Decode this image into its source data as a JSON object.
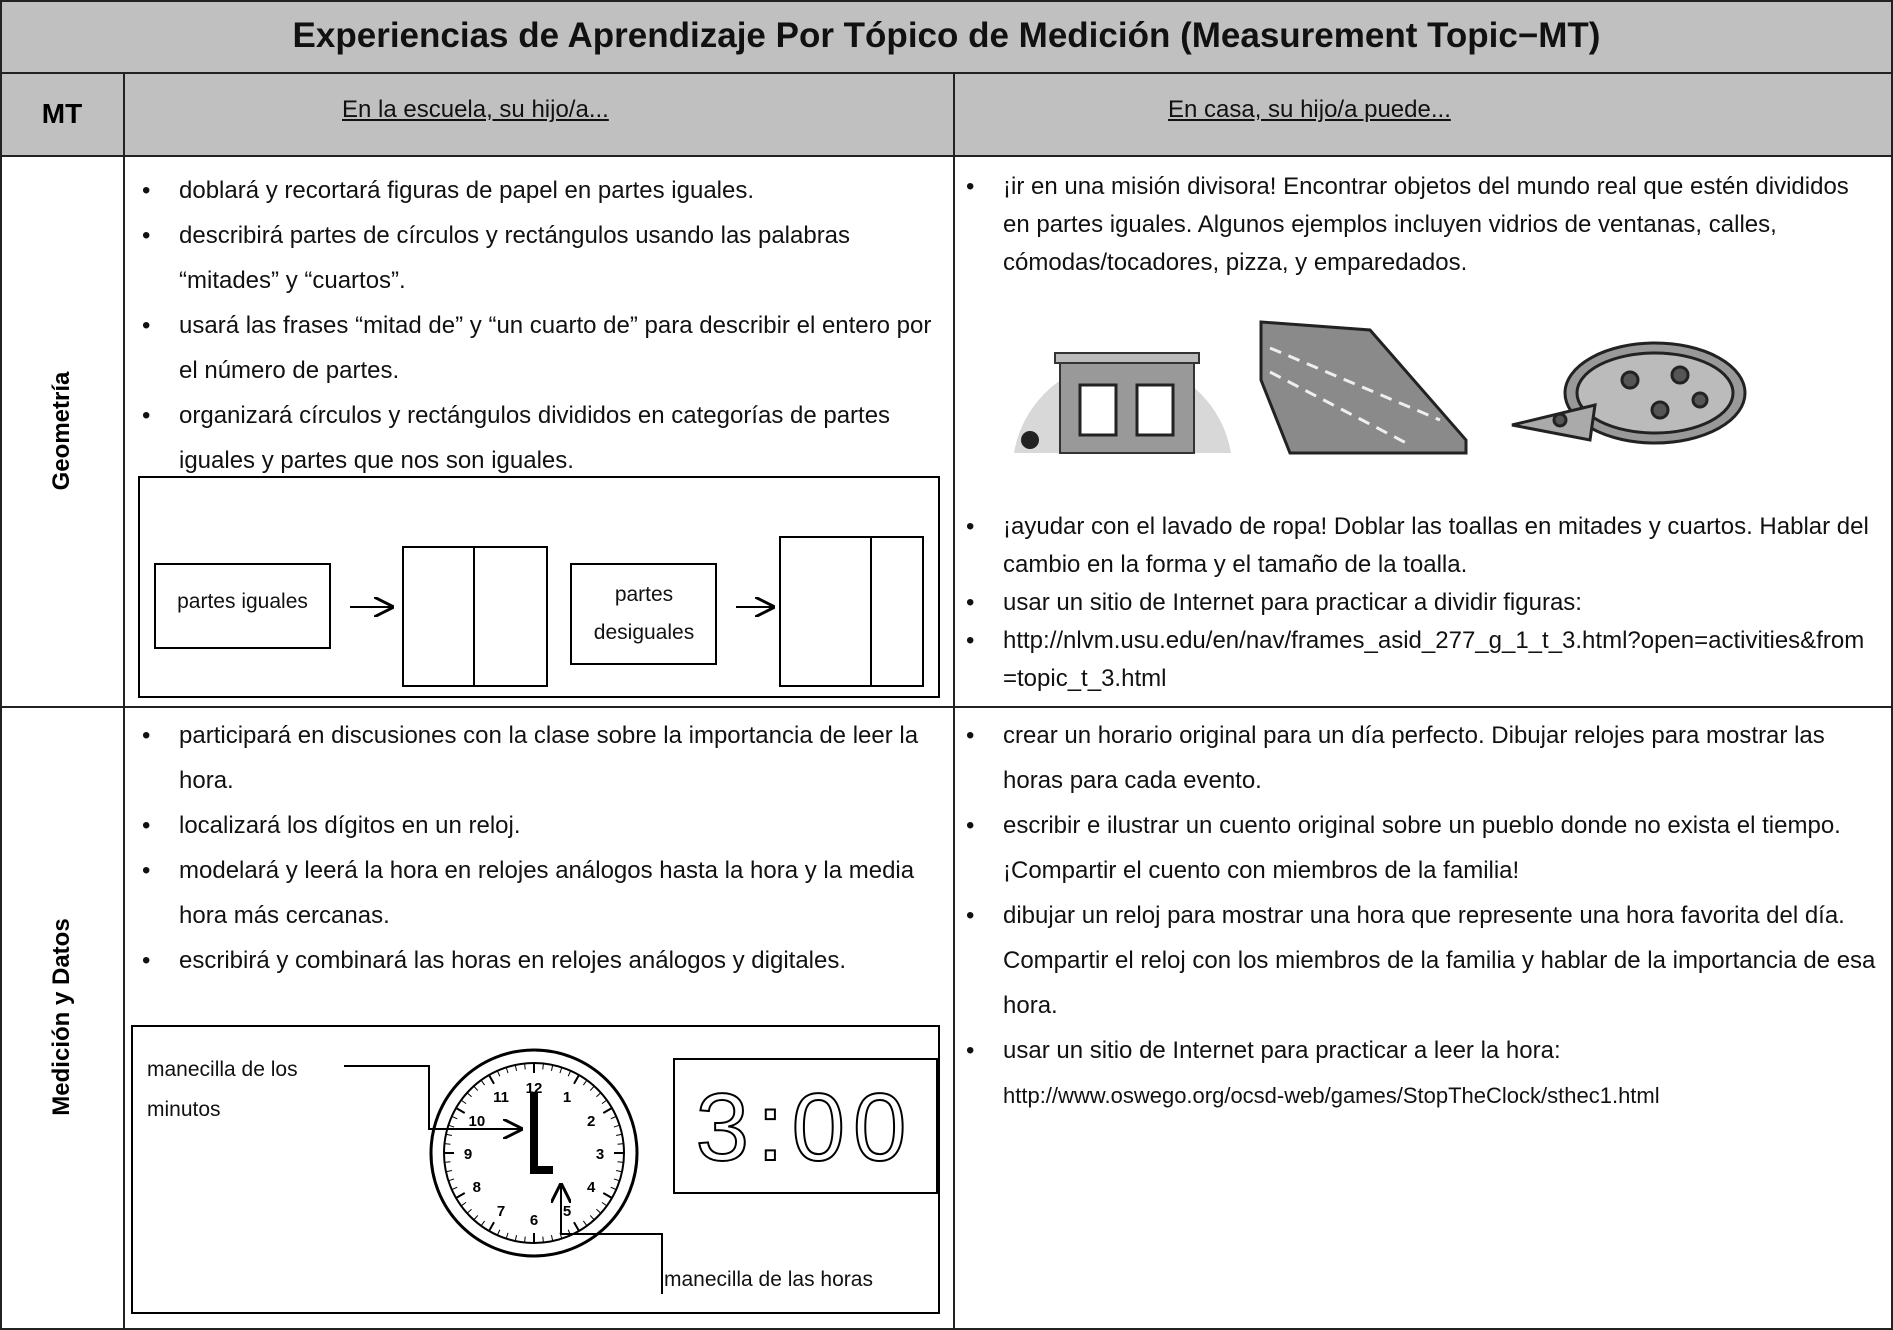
{
  "header": {
    "title": "Experiencias de Aprendizaje Por Tópico de Medición (Measurement Topic−MT)"
  },
  "table": {
    "columns": {
      "topic": "MT",
      "school": "En la escuela, su hijo/a...",
      "home": "En casa, su hijo/a puede..."
    },
    "rows": [
      {
        "topic": "Geometría",
        "school": [
          "doblará y recortará figuras de papel en partes iguales.",
          "describirá partes de círculos y rectángulos usando las palabras “mitades” y “cuartos”.",
          "usará las frases “mitad de” y “un cuarto de” para describir el entero por el número de partes.",
          "organizará círculos y rectángulos divididos en categorías de partes iguales y partes que nos son iguales."
        ],
        "home": [
          "¡ir en una misión divisora! Encontrar objetos del mundo real que estén divididos en partes iguales. Algunos ejemplos incluyen vidrios de ventanas, calles, cómodas/tocadores, pizza, y emparedados.",
          "¡ayudar con el lavado de ropa! Doblar las toallas en mitades y cuartos. Hablar del cambio en la forma y el tamaño de la toalla.",
          "usar un sitio de Internet para practicar a dividir figuras:",
          "http://nlvm.usu.edu/en/nav/frames_asid_277_g_1_t_3.html?open=activities&from=topic_t_3.html"
        ],
        "diagram": {
          "labels": [
            "partes iguales",
            "partes desiguales"
          ]
        }
      },
      {
        "topic": "Medición y Datos",
        "school": [
          "participará en discusiones con la clase sobre la importancia de leer la hora.",
          "localizará los dígitos en un reloj.",
          "modelará y leerá la hora en relojes análogos hasta la hora y la media hora más cercanas.",
          "escribirá y combinará las horas en relojes análogos y digitales."
        ],
        "home": [
          "crear un horario original para un día perfecto. Dibujar relojes para mostrar las horas para cada evento.",
          "escribir e ilustrar un cuento original sobre un pueblo donde no exista el tiempo.  ¡Compartir el cuento con miembros de la familia!",
          "dibujar un reloj para mostrar una hora que represente una hora favorita del día. Compartir el reloj con los miembros de la familia y hablar de la importancia de esa hora.",
          "usar un sitio de Internet para practicar a leer la hora:"
        ],
        "home_url": "http://www.oswego.org/ocsd-web/games/StopTheClock/sthec1.html",
        "diagram": {
          "minute_hand": "manecilla de los minutos",
          "hour_hand": "manecilla de las horas",
          "digital_time": "3:00",
          "clock_numbers": [
            12,
            1,
            2,
            3,
            4,
            5,
            6,
            7,
            8,
            9,
            10,
            11
          ]
        }
      }
    ]
  }
}
